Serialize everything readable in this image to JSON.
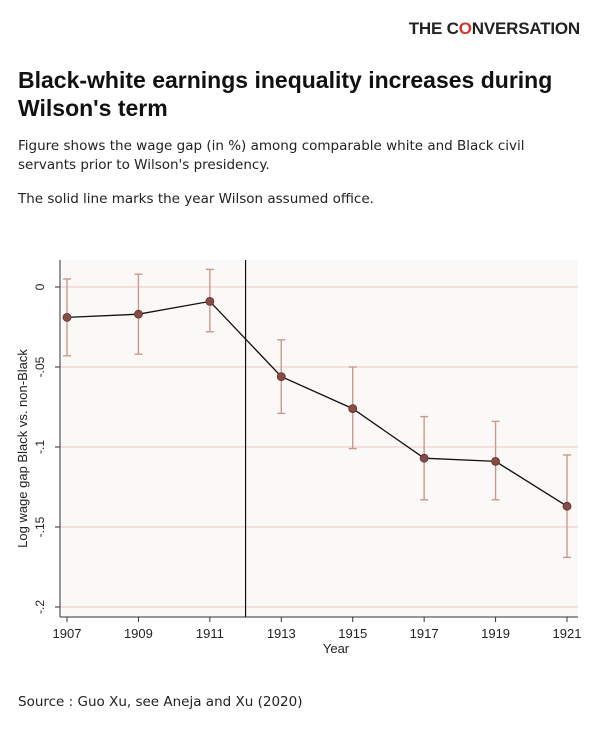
{
  "brand": {
    "prefix": "THE C",
    "ring": "O",
    "suffix": "NVERSATION"
  },
  "title": "Black-white earnings inequality increases during Wilson's term",
  "description_lines": [
    "Figure shows the wage gap (in %) among comparable white and Black civil servants prior to Wilson's presidency.",
    "The solid line marks the year Wilson assumed office."
  ],
  "source": "Source : Guo Xu, see Aneja and Xu (2020)",
  "colors": {
    "marker": "#8b4a42",
    "error_bar": "#c99a8c",
    "line": "#111111",
    "gridline": "#f0c8c0",
    "plot_bg": "#fbf9f8",
    "brand_accent": "#d8352a"
  },
  "chart_data": {
    "type": "line",
    "title": "",
    "xlabel": "Year",
    "ylabel": "Log wage gap Black vs. non-Black",
    "x": [
      1907,
      1909,
      1911,
      1913,
      1915,
      1917,
      1919,
      1921
    ],
    "y": [
      -0.019,
      -0.017,
      -0.009,
      -0.056,
      -0.076,
      -0.107,
      -0.109,
      -0.137
    ],
    "ci_low": [
      -0.043,
      -0.042,
      -0.028,
      -0.079,
      -0.101,
      -0.133,
      -0.133,
      -0.169
    ],
    "ci_high": [
      0.005,
      0.008,
      0.011,
      -0.033,
      -0.05,
      -0.081,
      -0.084,
      -0.105
    ],
    "xticks": [
      "1907",
      "1909",
      "1911",
      "1913",
      "1915",
      "1917",
      "1919",
      "1921"
    ],
    "yticks": [
      0,
      -0.05,
      -0.1,
      -0.15,
      -0.2
    ],
    "ytick_labels": [
      "0",
      "-.05",
      "-.1",
      "-.15",
      "-.2"
    ],
    "xlim": [
      1907,
      1921
    ],
    "ylim": [
      -0.2,
      0
    ],
    "reference_vline_x": 1912,
    "grid": true
  }
}
